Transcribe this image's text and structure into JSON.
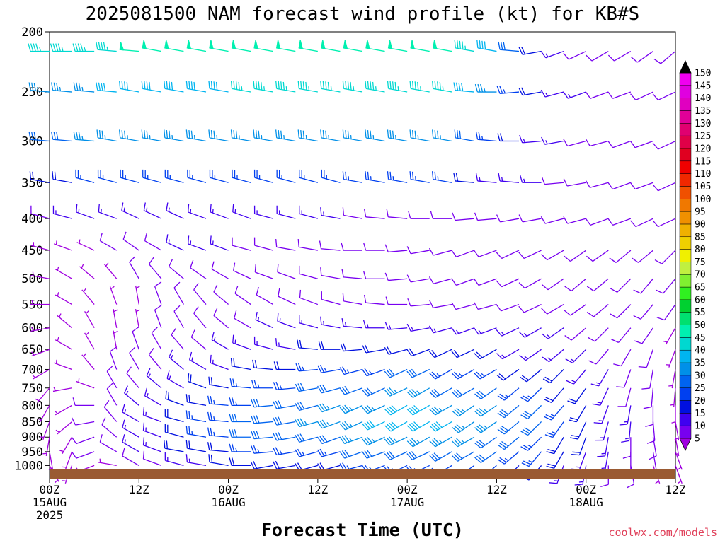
{
  "chart_data": {
    "type": "wind-barb profile",
    "title": "2025081500 NAM forecast wind profile (kt) for KB#S",
    "xlabel": "Forecast Time (UTC)",
    "y_axis": {
      "scale": "log-pressure",
      "range": [
        1050,
        200
      ],
      "ticks": [
        "200",
        "250",
        "300",
        "350",
        "400",
        "450",
        "500",
        "550",
        "600",
        "650",
        "700",
        "750",
        "800",
        "850",
        "900",
        "950",
        "1000"
      ]
    },
    "x_axis": {
      "range_hours": [
        0,
        84
      ],
      "ticks": [
        {
          "hour": 0,
          "line1": "00Z",
          "line2": "15AUG",
          "line3": "2025"
        },
        {
          "hour": 12,
          "line1": "12Z",
          "line2": "",
          "line3": ""
        },
        {
          "hour": 24,
          "line1": "00Z",
          "line2": "16AUG",
          "line3": ""
        },
        {
          "hour": 36,
          "line1": "12Z",
          "line2": "",
          "line3": ""
        },
        {
          "hour": 48,
          "line1": "00Z",
          "line2": "17AUG",
          "line3": ""
        },
        {
          "hour": 60,
          "line1": "12Z",
          "line2": "",
          "line3": ""
        },
        {
          "hour": 72,
          "line1": "00Z",
          "line2": "18AUG",
          "line3": ""
        },
        {
          "hour": 84,
          "line1": "12Z",
          "line2": "",
          "line3": ""
        }
      ]
    },
    "colorbar": {
      "levels": [
        5,
        10,
        15,
        20,
        25,
        30,
        35,
        40,
        45,
        50,
        55,
        60,
        65,
        70,
        75,
        80,
        85,
        90,
        95,
        100,
        105,
        110,
        115,
        120,
        125,
        130,
        135,
        140,
        145,
        150
      ],
      "colors": [
        "#a000e0",
        "#7800f0",
        "#4000f0",
        "#0010e0",
        "#0040f0",
        "#0064f0",
        "#0090e8",
        "#00b4f0",
        "#00d8d0",
        "#00f0b0",
        "#00e070",
        "#00d030",
        "#30f020",
        "#80f030",
        "#c0f040",
        "#f0f000",
        "#f0d000",
        "#f0b000",
        "#f09000",
        "#f07800",
        "#f05000",
        "#f02800",
        "#f00000",
        "#e00020",
        "#e00048",
        "#e00070",
        "#e00098",
        "#e000c0",
        "#e000e0",
        "#f000f0"
      ]
    },
    "time_hours": [
      0,
      3,
      6,
      9,
      12,
      15,
      18,
      21,
      24,
      27,
      30,
      33,
      36,
      39,
      42,
      45,
      48,
      51,
      54,
      57,
      60,
      63,
      66,
      69,
      72,
      75,
      78,
      81,
      84
    ],
    "levels": [
      {
        "p": 1000,
        "dir": [
          150,
          200,
          250,
          280,
          300,
          290,
          285,
          280,
          280,
          270,
          260,
          260,
          255,
          255,
          255,
          250,
          245,
          245,
          240,
          235,
          230,
          225,
          220,
          200,
          190,
          180,
          170,
          160,
          160
        ],
        "spd": [
          5,
          5,
          5,
          5,
          10,
          10,
          15,
          15,
          20,
          20,
          20,
          20,
          20,
          20,
          25,
          25,
          25,
          25,
          25,
          25,
          25,
          20,
          20,
          15,
          15,
          10,
          10,
          5,
          5
        ]
      },
      {
        "p": 950,
        "dir": [
          170,
          200,
          250,
          300,
          300,
          290,
          280,
          280,
          275,
          270,
          265,
          260,
          255,
          255,
          250,
          250,
          245,
          245,
          240,
          240,
          235,
          230,
          220,
          210,
          200,
          190,
          180,
          170,
          160
        ],
        "spd": [
          5,
          5,
          10,
          10,
          15,
          15,
          20,
          20,
          20,
          25,
          25,
          25,
          25,
          25,
          30,
          30,
          30,
          30,
          30,
          30,
          30,
          25,
          25,
          20,
          15,
          15,
          10,
          10,
          5
        ]
      },
      {
        "p": 900,
        "dir": [
          190,
          210,
          250,
          310,
          300,
          290,
          285,
          280,
          275,
          270,
          265,
          260,
          255,
          250,
          250,
          245,
          245,
          240,
          240,
          240,
          235,
          230,
          225,
          210,
          200,
          190,
          180,
          170,
          170
        ],
        "spd": [
          5,
          5,
          10,
          10,
          15,
          15,
          20,
          25,
          25,
          30,
          30,
          30,
          30,
          30,
          35,
          35,
          35,
          35,
          35,
          35,
          30,
          30,
          25,
          20,
          20,
          15,
          10,
          10,
          5
        ]
      },
      {
        "p": 850,
        "dir": [
          200,
          230,
          260,
          320,
          300,
          290,
          285,
          280,
          275,
          270,
          265,
          260,
          255,
          250,
          245,
          245,
          240,
          240,
          240,
          235,
          235,
          230,
          225,
          215,
          205,
          195,
          185,
          175,
          170
        ],
        "spd": [
          5,
          5,
          10,
          10,
          15,
          15,
          20,
          25,
          25,
          30,
          30,
          30,
          35,
          35,
          35,
          40,
          40,
          40,
          40,
          35,
          35,
          30,
          30,
          25,
          20,
          15,
          15,
          10,
          5
        ]
      },
      {
        "p": 800,
        "dir": [
          210,
          240,
          270,
          330,
          310,
          300,
          290,
          280,
          275,
          270,
          265,
          260,
          255,
          250,
          245,
          245,
          240,
          240,
          240,
          235,
          235,
          230,
          225,
          220,
          210,
          200,
          190,
          180,
          180
        ],
        "spd": [
          5,
          5,
          10,
          10,
          15,
          15,
          20,
          20,
          25,
          25,
          30,
          30,
          30,
          35,
          35,
          35,
          40,
          40,
          35,
          35,
          35,
          30,
          30,
          25,
          20,
          15,
          15,
          10,
          5
        ]
      },
      {
        "p": 750,
        "dir": [
          220,
          260,
          290,
          330,
          320,
          310,
          300,
          290,
          280,
          275,
          270,
          265,
          260,
          255,
          250,
          245,
          245,
          240,
          240,
          240,
          235,
          230,
          225,
          220,
          215,
          205,
          195,
          185,
          185
        ],
        "spd": [
          5,
          5,
          5,
          10,
          10,
          15,
          15,
          20,
          20,
          25,
          25,
          25,
          30,
          30,
          30,
          30,
          35,
          35,
          30,
          30,
          30,
          25,
          25,
          20,
          20,
          15,
          10,
          10,
          5
        ]
      },
      {
        "p": 700,
        "dir": [
          240,
          290,
          320,
          340,
          330,
          320,
          310,
          300,
          290,
          280,
          275,
          270,
          265,
          260,
          255,
          250,
          245,
          245,
          240,
          240,
          240,
          235,
          230,
          225,
          220,
          210,
          200,
          190,
          190
        ],
        "spd": [
          5,
          5,
          5,
          10,
          10,
          10,
          15,
          15,
          15,
          20,
          20,
          20,
          25,
          25,
          25,
          25,
          30,
          30,
          25,
          25,
          25,
          20,
          20,
          20,
          15,
          15,
          10,
          10,
          5
        ]
      },
      {
        "p": 650,
        "dir": [
          250,
          300,
          330,
          350,
          340,
          330,
          320,
          310,
          300,
          290,
          285,
          280,
          275,
          270,
          265,
          260,
          255,
          250,
          245,
          245,
          240,
          240,
          235,
          230,
          225,
          220,
          210,
          200,
          200
        ],
        "spd": [
          5,
          5,
          5,
          5,
          10,
          10,
          10,
          10,
          15,
          15,
          15,
          15,
          20,
          20,
          20,
          20,
          20,
          20,
          20,
          20,
          20,
          15,
          15,
          15,
          15,
          10,
          10,
          10,
          5
        ]
      },
      {
        "p": 600,
        "dir": [
          260,
          310,
          330,
          350,
          350,
          340,
          330,
          320,
          310,
          300,
          295,
          290,
          285,
          280,
          275,
          270,
          265,
          260,
          255,
          250,
          250,
          245,
          240,
          235,
          230,
          225,
          220,
          215,
          210
        ],
        "spd": [
          5,
          5,
          5,
          5,
          5,
          10,
          10,
          10,
          10,
          10,
          15,
          15,
          15,
          15,
          15,
          15,
          15,
          15,
          15,
          15,
          15,
          15,
          15,
          15,
          10,
          10,
          10,
          10,
          5
        ]
      },
      {
        "p": 550,
        "dir": [
          270,
          300,
          320,
          340,
          350,
          340,
          330,
          320,
          310,
          305,
          300,
          295,
          290,
          285,
          280,
          275,
          270,
          265,
          260,
          255,
          255,
          250,
          245,
          240,
          235,
          230,
          225,
          220,
          215
        ],
        "spd": [
          5,
          5,
          5,
          5,
          5,
          10,
          10,
          10,
          10,
          10,
          10,
          10,
          10,
          10,
          10,
          10,
          10,
          10,
          10,
          10,
          10,
          10,
          10,
          10,
          10,
          10,
          10,
          10,
          10
        ]
      },
      {
        "p": 500,
        "dir": [
          280,
          300,
          310,
          320,
          330,
          320,
          310,
          305,
          300,
          295,
          290,
          290,
          285,
          280,
          275,
          270,
          265,
          260,
          255,
          250,
          250,
          245,
          240,
          235,
          230,
          230,
          225,
          220,
          220
        ],
        "spd": [
          5,
          5,
          5,
          5,
          10,
          10,
          10,
          10,
          10,
          10,
          10,
          10,
          10,
          10,
          10,
          10,
          10,
          10,
          10,
          10,
          10,
          10,
          10,
          10,
          10,
          10,
          10,
          10,
          10
        ]
      },
      {
        "p": 450,
        "dir": [
          285,
          290,
          295,
          300,
          305,
          300,
          295,
          290,
          290,
          285,
          285,
          280,
          280,
          275,
          270,
          270,
          265,
          260,
          255,
          250,
          250,
          245,
          245,
          240,
          235,
          235,
          230,
          230,
          225
        ],
        "spd": [
          5,
          5,
          5,
          10,
          10,
          10,
          15,
          15,
          15,
          10,
          10,
          10,
          10,
          10,
          10,
          10,
          10,
          10,
          10,
          10,
          10,
          10,
          10,
          10,
          10,
          10,
          10,
          10,
          10
        ]
      },
      {
        "p": 400,
        "dir": [
          285,
          285,
          290,
          290,
          295,
          295,
          295,
          290,
          290,
          290,
          285,
          285,
          285,
          280,
          280,
          275,
          275,
          270,
          270,
          265,
          265,
          260,
          260,
          255,
          255,
          250,
          250,
          245,
          245
        ],
        "spd": [
          10,
          15,
          15,
          15,
          15,
          15,
          15,
          15,
          15,
          15,
          15,
          15,
          15,
          15,
          10,
          10,
          10,
          10,
          10,
          10,
          10,
          10,
          10,
          10,
          10,
          10,
          10,
          10,
          10
        ]
      },
      {
        "p": 350,
        "dir": [
          280,
          280,
          285,
          285,
          285,
          285,
          285,
          285,
          285,
          285,
          285,
          285,
          285,
          285,
          280,
          280,
          280,
          280,
          280,
          275,
          275,
          275,
          270,
          265,
          260,
          255,
          250,
          250,
          245
        ],
        "spd": [
          20,
          20,
          25,
          25,
          25,
          25,
          25,
          25,
          25,
          25,
          25,
          25,
          25,
          25,
          25,
          25,
          25,
          25,
          25,
          20,
          15,
          15,
          15,
          10,
          10,
          10,
          10,
          10,
          10
        ]
      },
      {
        "p": 300,
        "dir": [
          275,
          275,
          275,
          280,
          280,
          280,
          280,
          280,
          280,
          280,
          280,
          280,
          280,
          280,
          280,
          280,
          280,
          280,
          280,
          280,
          275,
          270,
          265,
          260,
          255,
          255,
          250,
          250,
          245
        ],
        "spd": [
          30,
          30,
          35,
          35,
          35,
          35,
          35,
          35,
          35,
          35,
          35,
          35,
          35,
          35,
          35,
          35,
          35,
          35,
          35,
          30,
          25,
          20,
          15,
          15,
          10,
          10,
          10,
          10,
          10
        ]
      },
      {
        "p": 250,
        "dir": [
          275,
          275,
          275,
          275,
          280,
          280,
          280,
          280,
          280,
          280,
          280,
          280,
          280,
          280,
          280,
          280,
          280,
          280,
          280,
          275,
          270,
          265,
          260,
          255,
          250,
          250,
          250,
          245,
          245
        ],
        "spd": [
          35,
          35,
          35,
          40,
          40,
          40,
          40,
          40,
          40,
          45,
          45,
          45,
          45,
          45,
          45,
          45,
          45,
          45,
          45,
          40,
          35,
          25,
          20,
          15,
          15,
          10,
          10,
          10,
          10
        ]
      },
      {
        "p": 215,
        "dir": [
          270,
          270,
          270,
          275,
          275,
          280,
          280,
          280,
          280,
          280,
          280,
          280,
          280,
          280,
          280,
          280,
          280,
          280,
          280,
          280,
          280,
          275,
          260,
          250,
          245,
          240,
          240,
          235,
          230
        ],
        "spd": [
          45,
          45,
          45,
          45,
          50,
          50,
          50,
          50,
          50,
          50,
          50,
          50,
          50,
          50,
          50,
          50,
          50,
          50,
          50,
          45,
          40,
          30,
          20,
          15,
          10,
          10,
          10,
          10,
          10
        ]
      }
    ],
    "credit": "coolwx.com/models"
  }
}
